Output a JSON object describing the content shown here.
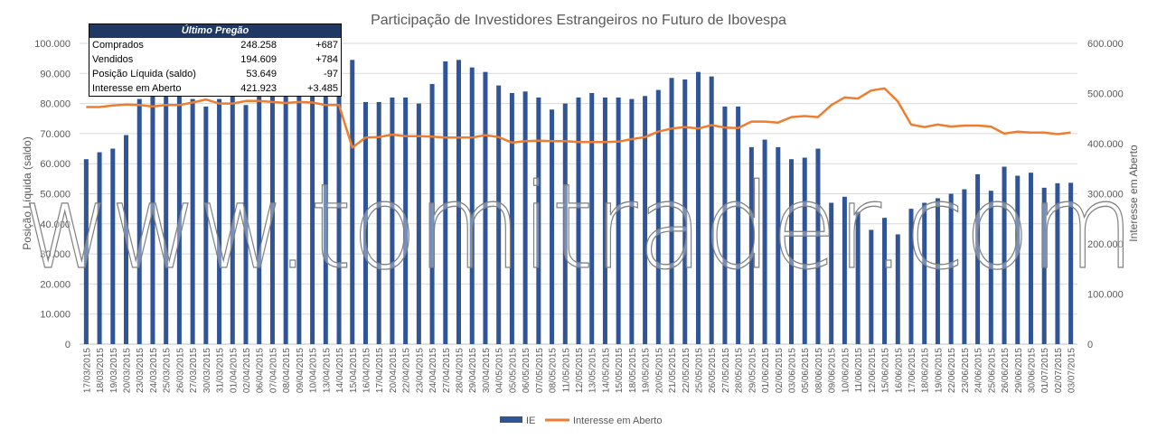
{
  "chart_data": {
    "type": "bar+line",
    "title": "Participação de Investidores Estrangeiros no Futuro de Ibovespa",
    "ylabel_left": "Posição Líquida (saldo)",
    "ylabel_right": "Interesse em Aberto",
    "ylim_left": [
      0,
      100000
    ],
    "ylim_right": [
      0,
      600000
    ],
    "yticks_left": [
      "0",
      "10.000",
      "20.000",
      "30.000",
      "40.000",
      "50.000",
      "60.000",
      "70.000",
      "80.000",
      "90.000",
      "100.000"
    ],
    "yticks_right": [
      "0",
      "100.000",
      "200.000",
      "300.000",
      "400.000",
      "500.000",
      "600.000"
    ],
    "legend_position": "bottom",
    "watermark": "www.tomitrader.com",
    "categories": [
      "17/03/2015",
      "18/03/2015",
      "19/03/2015",
      "20/03/2015",
      "23/03/2015",
      "24/03/2015",
      "25/03/2015",
      "26/03/2015",
      "27/03/2015",
      "30/03/2015",
      "31/03/2015",
      "01/04/2015",
      "02/04/2015",
      "06/04/2015",
      "07/04/2015",
      "08/04/2015",
      "09/04/2015",
      "10/04/2015",
      "13/04/2015",
      "14/04/2015",
      "15/04/2015",
      "16/04/2015",
      "17/04/2015",
      "20/04/2015",
      "22/04/2015",
      "23/04/2015",
      "24/04/2015",
      "27/04/2015",
      "28/04/2015",
      "29/04/2015",
      "30/04/2015",
      "04/05/2015",
      "05/05/2015",
      "06/05/2015",
      "07/05/2015",
      "08/05/2015",
      "11/05/2015",
      "12/05/2015",
      "13/05/2015",
      "14/05/2015",
      "15/05/2015",
      "18/05/2015",
      "19/05/2015",
      "20/05/2015",
      "21/05/2015",
      "22/05/2015",
      "25/05/2015",
      "26/05/2015",
      "27/05/2015",
      "28/05/2015",
      "29/05/2015",
      "01/06/2015",
      "02/06/2015",
      "03/06/2015",
      "05/06/2015",
      "08/06/2015",
      "09/06/2015",
      "10/06/2015",
      "11/06/2015",
      "12/06/2015",
      "15/06/2015",
      "16/06/2015",
      "17/06/2015",
      "18/06/2015",
      "19/06/2015",
      "22/06/2015",
      "23/06/2015",
      "24/06/2015",
      "25/06/2015",
      "26/06/2015",
      "29/06/2015",
      "30/06/2015",
      "01/07/2015",
      "02/07/2015",
      "03/07/2015"
    ],
    "series": [
      {
        "name": "IE",
        "axis": "left",
        "kind": "bar",
        "color": "#2F5597",
        "values": [
          61500,
          63800,
          65000,
          69500,
          81500,
          82500,
          83500,
          82500,
          81500,
          79000,
          81500,
          83000,
          79500,
          85000,
          84500,
          85000,
          84000,
          84000,
          84000,
          84000,
          94500,
          80500,
          80500,
          82000,
          82000,
          80000,
          86500,
          94000,
          94500,
          92000,
          90500,
          86000,
          83500,
          84000,
          82000,
          78000,
          80000,
          82000,
          83500,
          82000,
          82000,
          81500,
          82500,
          84500,
          88500,
          88000,
          90500,
          89000,
          79000,
          79000,
          65500,
          68000,
          65500,
          61500,
          62000,
          65000,
          47000,
          49000,
          44000,
          38000,
          42000,
          36500,
          45000,
          47000,
          48500,
          50000,
          51500,
          56500,
          51000,
          59000,
          56000,
          57000,
          52000,
          53500,
          53650
        ]
      },
      {
        "name": "Interesse em Aberto",
        "axis": "right",
        "kind": "line",
        "color": "#ED7D31",
        "values": [
          473000,
          473000,
          476000,
          478000,
          477000,
          474000,
          477000,
          477000,
          482000,
          488000,
          480000,
          480000,
          485000,
          485000,
          483000,
          481000,
          483000,
          482000,
          477000,
          477000,
          392000,
          412000,
          413000,
          418000,
          415000,
          415000,
          414000,
          412000,
          412000,
          412000,
          417000,
          413000,
          402000,
          405000,
          406000,
          405000,
          405000,
          403000,
          403000,
          403000,
          404000,
          409000,
          413000,
          424000,
          430000,
          433000,
          430000,
          437000,
          432000,
          431000,
          444000,
          444000,
          442000,
          453000,
          455000,
          453000,
          477000,
          492000,
          490000,
          506000,
          510000,
          484000,
          438000,
          433000,
          438000,
          434000,
          436000,
          436000,
          434000,
          420000,
          424000,
          422000,
          422000,
          419000,
          421923
        ]
      }
    ]
  },
  "info_box": {
    "title": "Último Pregão",
    "rows": [
      {
        "label": "Comprados",
        "value": "248.258",
        "change": "+687"
      },
      {
        "label": "Vendidos",
        "value": "194.609",
        "change": "+784"
      },
      {
        "label": "Posição Líquida (saldo)",
        "value": "53.649",
        "change": "-97"
      },
      {
        "label": "Interesse em Aberto",
        "value": "421.923",
        "change": "+3.485"
      }
    ]
  }
}
